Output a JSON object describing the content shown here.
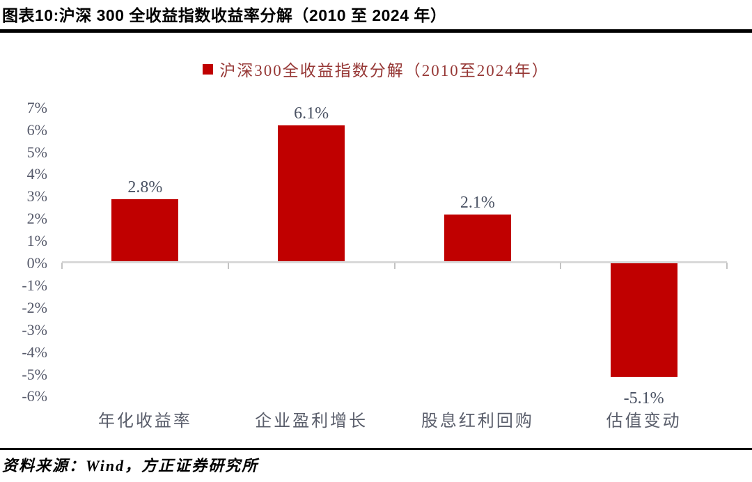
{
  "header": {
    "title": "图表10:沪深 300 全收益指数收益率分解（2010 至 2024 年）"
  },
  "chart_data": {
    "type": "bar",
    "title": "沪深300全收益指数分解（2010至2024年）",
    "legend_position": "top-center",
    "categories": [
      "年化收益率",
      "企业盈利增长",
      "股息红利回购",
      "估值变动"
    ],
    "values": [
      2.8,
      6.1,
      2.1,
      -5.1
    ],
    "value_labels": [
      "2.8%",
      "6.1%",
      "2.1%",
      "-5.1%"
    ],
    "ylim": [
      -6,
      7
    ],
    "ytick_step": 1,
    "ytick_values": [
      7,
      6,
      5,
      4,
      3,
      2,
      1,
      0,
      -1,
      -2,
      -3,
      -4,
      -5,
      -6
    ],
    "ytick_labels": [
      "7%",
      "6%",
      "5%",
      "4%",
      "3%",
      "2%",
      "1%",
      "0%",
      "-1%",
      "-2%",
      "-3%",
      "-4%",
      "-5%",
      "-6%"
    ],
    "grid": false,
    "xlabel": "",
    "ylabel": "",
    "bar_color": "#C00000"
  },
  "footer": {
    "source": "资料来源：Wind，方正证券研究所"
  },
  "colors": {
    "bar": "#C00000",
    "legend_text": "#963735",
    "axis_line": "#D9D9D9",
    "axis_tick": "#C3C3C3",
    "ytick_label": "#55596A",
    "data_label": "#4A5263",
    "category_label": "#5A5E6B",
    "rule": "#000000"
  }
}
